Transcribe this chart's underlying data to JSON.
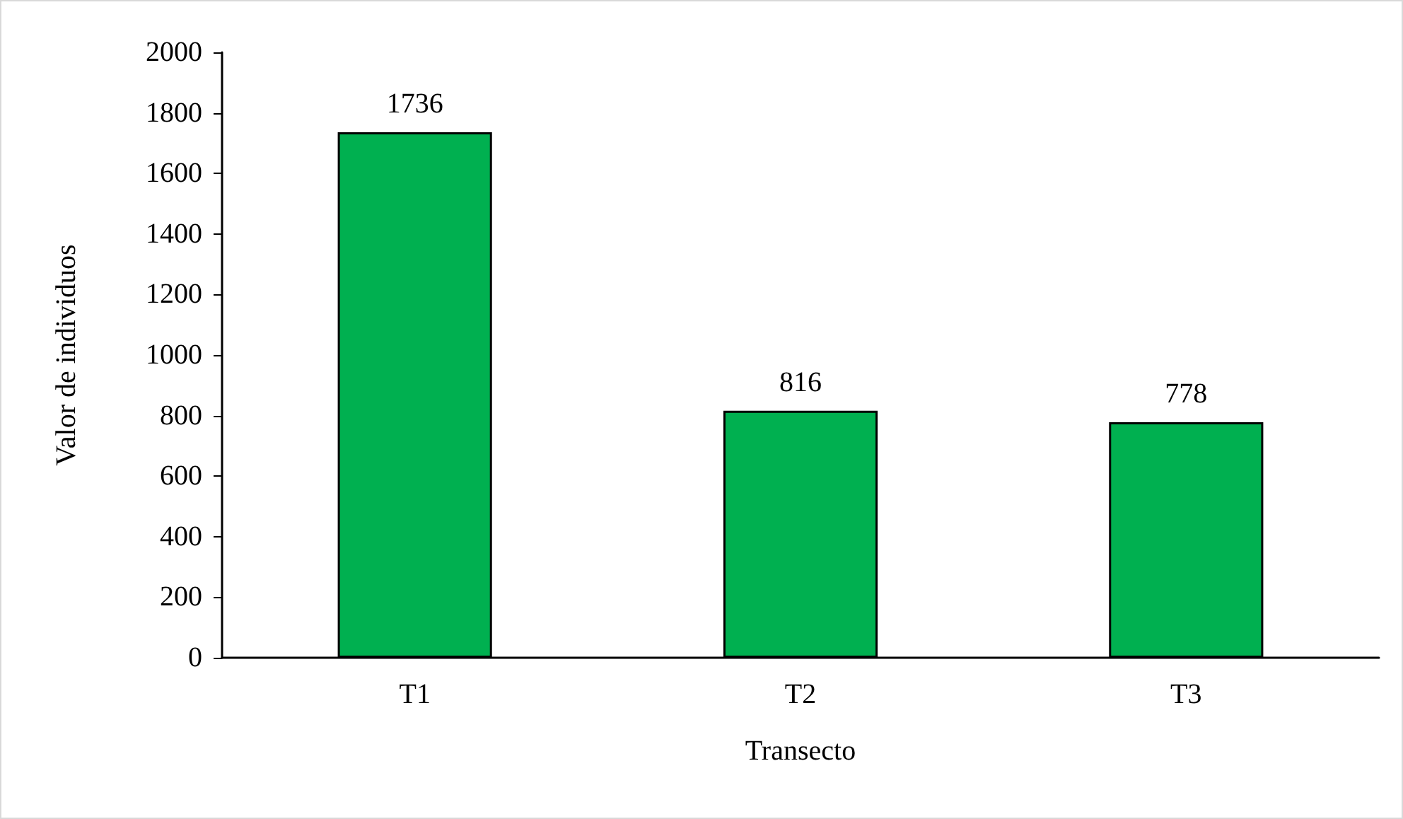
{
  "chart_data": {
    "type": "bar",
    "xlabel": "Transecto",
    "ylabel": "Valor de individuos",
    "categories": [
      "T1",
      "T2",
      "T3"
    ],
    "values": [
      1736,
      816,
      778
    ],
    "color": "#00b050",
    "ylim": [
      0,
      2000
    ],
    "yticks": [
      0,
      200,
      400,
      600,
      800,
      1000,
      1200,
      1400,
      1600,
      1800,
      2000
    ],
    "grid": false,
    "data_labels": true
  }
}
